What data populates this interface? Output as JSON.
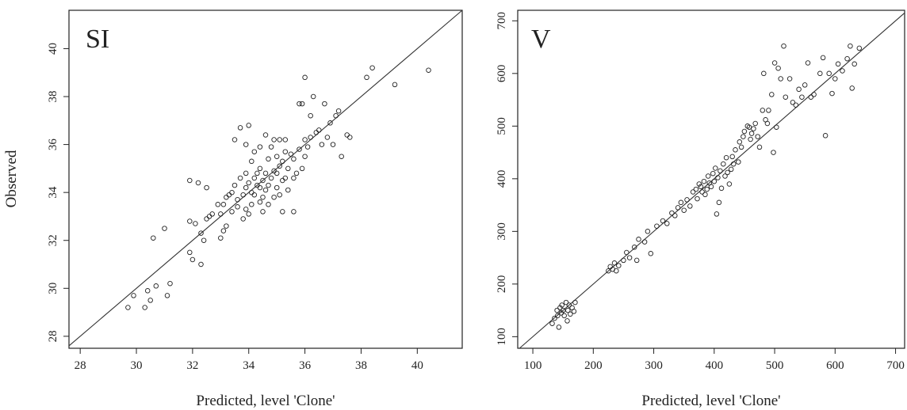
{
  "chart_data": [
    {
      "type": "scatter",
      "panel_label": "SI",
      "title": "",
      "xlabel": "Predicted, level 'Clone'",
      "ylabel": "Observed",
      "xlim": [
        27.6,
        41.6
      ],
      "ylim": [
        27.5,
        41.6
      ],
      "xticks": [
        28,
        30,
        32,
        34,
        36,
        38,
        40
      ],
      "yticks": [
        28,
        30,
        32,
        34,
        36,
        38,
        40
      ],
      "reference_line": "y = x",
      "points": [
        [
          29.7,
          29.2
        ],
        [
          29.9,
          29.7
        ],
        [
          30.3,
          29.2
        ],
        [
          30.4,
          29.9
        ],
        [
          30.5,
          29.5
        ],
        [
          30.7,
          30.1
        ],
        [
          31.1,
          29.7
        ],
        [
          31.2,
          30.2
        ],
        [
          30.6,
          32.1
        ],
        [
          31.0,
          32.5
        ],
        [
          31.9,
          31.5
        ],
        [
          32.0,
          31.2
        ],
        [
          32.3,
          31.0
        ],
        [
          32.4,
          32.0
        ],
        [
          32.1,
          32.7
        ],
        [
          31.9,
          32.8
        ],
        [
          31.9,
          34.5
        ],
        [
          32.2,
          34.4
        ],
        [
          32.5,
          34.2
        ],
        [
          32.3,
          32.3
        ],
        [
          32.5,
          32.9
        ],
        [
          32.6,
          33.0
        ],
        [
          32.7,
          33.1
        ],
        [
          32.9,
          33.5
        ],
        [
          33.0,
          32.1
        ],
        [
          33.1,
          32.4
        ],
        [
          33.2,
          32.6
        ],
        [
          33.0,
          33.1
        ],
        [
          33.1,
          33.5
        ],
        [
          33.2,
          33.8
        ],
        [
          33.3,
          33.9
        ],
        [
          33.4,
          33.2
        ],
        [
          33.4,
          34.0
        ],
        [
          33.5,
          34.3
        ],
        [
          33.5,
          36.2
        ],
        [
          33.6,
          33.4
        ],
        [
          33.6,
          33.7
        ],
        [
          33.7,
          34.6
        ],
        [
          33.7,
          36.7
        ],
        [
          33.8,
          32.9
        ],
        [
          33.8,
          33.9
        ],
        [
          33.9,
          34.2
        ],
        [
          33.9,
          34.8
        ],
        [
          33.9,
          36.0
        ],
        [
          34.0,
          33.1
        ],
        [
          34.0,
          34.4
        ],
        [
          34.0,
          36.8
        ],
        [
          34.1,
          33.5
        ],
        [
          34.1,
          34.0
        ],
        [
          34.1,
          35.3
        ],
        [
          34.2,
          33.9
        ],
        [
          34.2,
          34.6
        ],
        [
          34.2,
          35.7
        ],
        [
          34.3,
          34.3
        ],
        [
          34.3,
          34.8
        ],
        [
          34.4,
          33.6
        ],
        [
          34.4,
          34.2
        ],
        [
          34.4,
          35.0
        ],
        [
          34.4,
          35.9
        ],
        [
          34.5,
          33.2
        ],
        [
          34.5,
          34.5
        ],
        [
          34.6,
          34.1
        ],
        [
          34.6,
          34.8
        ],
        [
          34.6,
          36.4
        ],
        [
          34.7,
          33.5
        ],
        [
          34.7,
          34.3
        ],
        [
          34.7,
          35.4
        ],
        [
          34.8,
          34.6
        ],
        [
          34.8,
          35.9
        ],
        [
          34.9,
          33.8
        ],
        [
          34.9,
          34.9
        ],
        [
          34.9,
          36.2
        ],
        [
          35.0,
          34.2
        ],
        [
          35.0,
          34.8
        ],
        [
          35.0,
          35.5
        ],
        [
          35.1,
          33.9
        ],
        [
          35.1,
          35.1
        ],
        [
          35.1,
          36.2
        ],
        [
          35.2,
          34.5
        ],
        [
          35.2,
          35.3
        ],
        [
          35.2,
          33.2
        ],
        [
          35.3,
          34.6
        ],
        [
          35.3,
          35.7
        ],
        [
          35.3,
          36.2
        ],
        [
          35.4,
          35.0
        ],
        [
          35.4,
          34.1
        ],
        [
          35.5,
          35.6
        ],
        [
          35.6,
          33.2
        ],
        [
          35.6,
          34.6
        ],
        [
          35.6,
          35.4
        ],
        [
          35.7,
          34.8
        ],
        [
          35.8,
          35.8
        ],
        [
          35.8,
          37.7
        ],
        [
          35.9,
          35.0
        ],
        [
          35.9,
          37.7
        ],
        [
          36.0,
          36.2
        ],
        [
          36.0,
          35.5
        ],
        [
          36.0,
          38.8
        ],
        [
          36.1,
          35.9
        ],
        [
          36.2,
          36.3
        ],
        [
          36.2,
          37.2
        ],
        [
          36.3,
          38.0
        ],
        [
          36.4,
          36.5
        ],
        [
          36.5,
          36.6
        ],
        [
          36.6,
          36.0
        ],
        [
          36.7,
          37.7
        ],
        [
          36.8,
          36.3
        ],
        [
          36.9,
          36.9
        ],
        [
          37.0,
          36.0
        ],
        [
          37.1,
          37.2
        ],
        [
          37.2,
          37.4
        ],
        [
          37.3,
          35.5
        ],
        [
          37.5,
          36.4
        ],
        [
          37.6,
          36.3
        ],
        [
          38.2,
          38.8
        ],
        [
          38.4,
          39.2
        ],
        [
          39.2,
          38.5
        ],
        [
          40.4,
          39.1
        ],
        [
          33.9,
          33.3
        ],
        [
          34.5,
          33.8
        ]
      ]
    },
    {
      "type": "scatter",
      "panel_label": "V",
      "title": "",
      "xlabel": "Predicted, level 'Clone'",
      "ylabel": "",
      "xlim": [
        75,
        715
      ],
      "ylim": [
        78,
        720
      ],
      "xticks": [
        100,
        200,
        300,
        400,
        500,
        600,
        700
      ],
      "yticks": [
        100,
        200,
        300,
        400,
        500,
        600,
        700
      ],
      "reference_line": "y = x",
      "points": [
        [
          132,
          125
        ],
        [
          136,
          135
        ],
        [
          140,
          150
        ],
        [
          141,
          140
        ],
        [
          143,
          118
        ],
        [
          145,
          155
        ],
        [
          147,
          145
        ],
        [
          148,
          160
        ],
        [
          150,
          150
        ],
        [
          152,
          140
        ],
        [
          155,
          165
        ],
        [
          157,
          130
        ],
        [
          158,
          150
        ],
        [
          160,
          160
        ],
        [
          162,
          143
        ],
        [
          165,
          155
        ],
        [
          168,
          148
        ],
        [
          170,
          165
        ],
        [
          225,
          225
        ],
        [
          228,
          233
        ],
        [
          232,
          228
        ],
        [
          235,
          240
        ],
        [
          238,
          225
        ],
        [
          242,
          235
        ],
        [
          250,
          245
        ],
        [
          255,
          260
        ],
        [
          260,
          250
        ],
        [
          268,
          270
        ],
        [
          272,
          245
        ],
        [
          275,
          285
        ],
        [
          285,
          280
        ],
        [
          290,
          300
        ],
        [
          295,
          258
        ],
        [
          305,
          310
        ],
        [
          315,
          320
        ],
        [
          322,
          315
        ],
        [
          330,
          335
        ],
        [
          335,
          330
        ],
        [
          340,
          345
        ],
        [
          345,
          355
        ],
        [
          350,
          340
        ],
        [
          355,
          360
        ],
        [
          360,
          348
        ],
        [
          365,
          375
        ],
        [
          370,
          380
        ],
        [
          372,
          362
        ],
        [
          375,
          390
        ],
        [
          378,
          385
        ],
        [
          380,
          375
        ],
        [
          383,
          395
        ],
        [
          385,
          370
        ],
        [
          388,
          380
        ],
        [
          390,
          405
        ],
        [
          392,
          392
        ],
        [
          395,
          385
        ],
        [
          398,
          410
        ],
        [
          400,
          395
        ],
        [
          402,
          420
        ],
        [
          404,
          333
        ],
        [
          406,
          402
        ],
        [
          408,
          355
        ],
        [
          410,
          415
        ],
        [
          412,
          382
        ],
        [
          415,
          428
        ],
        [
          418,
          405
        ],
        [
          420,
          440
        ],
        [
          422,
          412
        ],
        [
          425,
          390
        ],
        [
          428,
          418
        ],
        [
          430,
          442
        ],
        [
          432,
          428
        ],
        [
          435,
          455
        ],
        [
          440,
          432
        ],
        [
          442,
          470
        ],
        [
          445,
          460
        ],
        [
          448,
          480
        ],
        [
          450,
          490
        ],
        [
          455,
          500
        ],
        [
          458,
          498
        ],
        [
          460,
          475
        ],
        [
          462,
          486
        ],
        [
          465,
          495
        ],
        [
          468,
          505
        ],
        [
          472,
          480
        ],
        [
          475,
          460
        ],
        [
          480,
          530
        ],
        [
          482,
          600
        ],
        [
          485,
          512
        ],
        [
          488,
          505
        ],
        [
          490,
          530
        ],
        [
          495,
          560
        ],
        [
          498,
          450
        ],
        [
          500,
          620
        ],
        [
          503,
          498
        ],
        [
          506,
          610
        ],
        [
          510,
          590
        ],
        [
          515,
          652
        ],
        [
          518,
          555
        ],
        [
          525,
          590
        ],
        [
          530,
          545
        ],
        [
          535,
          540
        ],
        [
          540,
          570
        ],
        [
          545,
          555
        ],
        [
          550,
          578
        ],
        [
          555,
          620
        ],
        [
          560,
          555
        ],
        [
          565,
          560
        ],
        [
          575,
          600
        ],
        [
          580,
          630
        ],
        [
          584,
          482
        ],
        [
          590,
          600
        ],
        [
          595,
          562
        ],
        [
          600,
          590
        ],
        [
          605,
          618
        ],
        [
          612,
          605
        ],
        [
          620,
          628
        ],
        [
          625,
          652
        ],
        [
          628,
          572
        ],
        [
          632,
          618
        ],
        [
          640,
          648
        ]
      ]
    }
  ]
}
